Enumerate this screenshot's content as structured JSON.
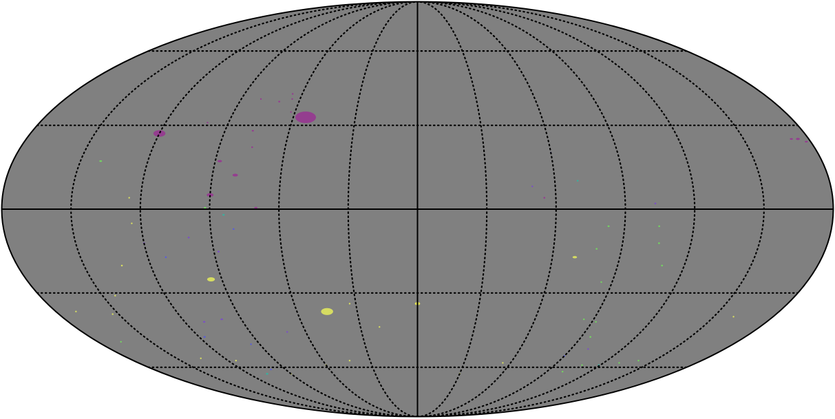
{
  "map": {
    "projection": "mollweide",
    "background_color": "#ffffff",
    "sky_fill_color": "#808080",
    "outline_color": "#000000",
    "graticule": {
      "style": "dotted",
      "color": "#000000",
      "meridian_step_deg": 30,
      "parallel_step_deg": 30
    },
    "axes_lines": "solid",
    "palette": {
      "purple": "#943e8f",
      "violet": "#7a4fc4",
      "blue": "#5a5ed6",
      "teal": "#38b1a0",
      "green": "#74d561",
      "yellow": "#d6dc62",
      "bright_yellow": "#e4e556"
    },
    "patches": [
      {
        "lon": 54,
        "lat": 33,
        "r": 5.0,
        "color": "purple"
      },
      {
        "lon": 120,
        "lat": 27,
        "r": 2.8,
        "color": "purple"
      },
      {
        "lon": 90,
        "lat": 5,
        "r": 1.5,
        "color": "purple"
      },
      {
        "lon": 80,
        "lat": 12,
        "r": 1.2,
        "color": "purple"
      },
      {
        "lon": 88,
        "lat": 17,
        "r": 1.0,
        "color": "purple"
      },
      {
        "lon": 70,
        "lat": 0.5,
        "r": 0.7,
        "color": "purple"
      },
      {
        "lon": 77,
        "lat": 28,
        "r": 0.5,
        "color": "purple"
      },
      {
        "lon": 70,
        "lat": 39,
        "r": 0.5,
        "color": "purple"
      },
      {
        "lon": 65,
        "lat": 42,
        "r": 0.45,
        "color": "purple"
      },
      {
        "lon": 80,
        "lat": 40,
        "r": 0.4,
        "color": "purple"
      },
      {
        "lon": 62,
        "lat": 35,
        "r": 0.4,
        "color": "purple"
      },
      {
        "lon": 100,
        "lat": 31,
        "r": 0.4,
        "color": "purple"
      },
      {
        "lon": 75,
        "lat": 22,
        "r": 0.4,
        "color": "purple"
      },
      {
        "lon": -55,
        "lat": 4,
        "r": 0.4,
        "color": "purple"
      },
      {
        "lon": 64,
        "lat": 40,
        "r": 0.35,
        "color": "purple"
      },
      {
        "lon": -175,
        "lat": 25,
        "r": 0.9,
        "color": "purple"
      },
      {
        "lon": -178,
        "lat": 24,
        "r": 0.7,
        "color": "purple"
      },
      {
        "lon": -172,
        "lat": 25,
        "r": 0.7,
        "color": "purple"
      },
      {
        "lon": 45,
        "lat": -37,
        "r": 3.0,
        "color": "yellow"
      },
      {
        "lon": 95,
        "lat": -25,
        "r": 1.8,
        "color": "yellow"
      },
      {
        "lon": 0,
        "lat": -34,
        "r": 1.3,
        "color": "bright_yellow"
      },
      {
        "lon": -70,
        "lat": -17,
        "r": 1.0,
        "color": "yellow"
      },
      {
        "lon": 141,
        "lat": 17,
        "r": 0.6,
        "color": "green"
      },
      {
        "lon": 92,
        "lat": 0.5,
        "r": 0.5,
        "color": "green"
      },
      {
        "lon": 84,
        "lat": -2,
        "r": 0.5,
        "color": "teal"
      },
      {
        "lon": -83,
        "lat": -6,
        "r": 0.45,
        "color": "green"
      },
      {
        "lon": -79,
        "lat": -14,
        "r": 0.4,
        "color": "green"
      },
      {
        "lon": -95,
        "lat": -47,
        "r": 0.5,
        "color": "green"
      },
      {
        "lon": -92,
        "lat": -41,
        "r": 0.45,
        "color": "green"
      },
      {
        "lon": -85,
        "lat": -40,
        "r": 0.4,
        "color": "green"
      },
      {
        "lon": -101,
        "lat": -62,
        "r": 0.6,
        "color": "green"
      },
      {
        "lon": -108,
        "lat": -59,
        "r": 0.5,
        "color": "green"
      },
      {
        "lon": -119,
        "lat": -59,
        "r": 0.45,
        "color": "teal"
      },
      {
        "lon": -130,
        "lat": -58,
        "r": 0.45,
        "color": "green"
      },
      {
        "lon": -140,
        "lat": -57,
        "r": 0.4,
        "color": "green"
      },
      {
        "lon": -160,
        "lat": -39,
        "r": 0.4,
        "color": "yellow"
      },
      {
        "lon": -110,
        "lat": -20,
        "r": 0.4,
        "color": "green"
      },
      {
        "lon": -106,
        "lat": -12,
        "r": 0.4,
        "color": "green"
      },
      {
        "lon": -105,
        "lat": -6,
        "r": 0.4,
        "color": "green"
      },
      {
        "lon": -103,
        "lat": 2,
        "r": 0.4,
        "color": "violet"
      },
      {
        "lon": 133,
        "lat": -20,
        "r": 0.4,
        "color": "yellow"
      },
      {
        "lon": 144,
        "lat": -31,
        "r": 0.4,
        "color": "yellow"
      },
      {
        "lon": 153,
        "lat": -38,
        "r": 0.4,
        "color": "yellow"
      },
      {
        "lon": 167,
        "lat": -49,
        "r": 0.45,
        "color": "green"
      },
      {
        "lon": 170,
        "lat": -37,
        "r": 0.35,
        "color": "yellow"
      },
      {
        "lon": 107,
        "lat": -63,
        "r": 0.8,
        "color": "teal"
      },
      {
        "lon": 100,
        "lat": -61,
        "r": 0.6,
        "color": "blue"
      },
      {
        "lon": 115,
        "lat": -57,
        "r": 0.5,
        "color": "yellow"
      },
      {
        "lon": 135,
        "lat": -56,
        "r": 0.5,
        "color": "yellow"
      },
      {
        "lon": 90,
        "lat": -63,
        "r": 0.5,
        "color": "yellow"
      },
      {
        "lon": 100,
        "lat": -40,
        "r": 0.6,
        "color": "violet"
      },
      {
        "lon": 110,
        "lat": -41,
        "r": 0.6,
        "color": "violet"
      },
      {
        "lon": 117,
        "lat": -47,
        "r": 0.6,
        "color": "blue"
      },
      {
        "lon": 88,
        "lat": -15,
        "r": 0.45,
        "color": "violet"
      },
      {
        "lon": 100,
        "lat": -10,
        "r": 0.4,
        "color": "violet"
      },
      {
        "lon": 80,
        "lat": -7,
        "r": 0.4,
        "color": "blue"
      },
      {
        "lon": 120,
        "lat": -12,
        "r": 0.4,
        "color": "violet"
      },
      {
        "lon": 112,
        "lat": -17,
        "r": 0.4,
        "color": "blue"
      },
      {
        "lon": 90,
        "lat": -30,
        "r": 0.4,
        "color": "violet"
      },
      {
        "lon": 70,
        "lat": -45,
        "r": 0.35,
        "color": "violet"
      },
      {
        "lon": 95,
        "lat": -50,
        "r": 0.35,
        "color": "blue"
      },
      {
        "lon": 60,
        "lat": -59,
        "r": 0.35,
        "color": "yellow"
      },
      {
        "lon": 43,
        "lat": -57,
        "r": 0.3,
        "color": "yellow"
      },
      {
        "lon": 20,
        "lat": -43,
        "r": 0.3,
        "color": "yellow"
      },
      {
        "lon": 33,
        "lat": -34,
        "r": 0.3,
        "color": "yellow"
      },
      {
        "lon": 125,
        "lat": 4,
        "r": 0.35,
        "color": "yellow"
      },
      {
        "lon": 124,
        "lat": -5,
        "r": 0.35,
        "color": "yellow"
      },
      {
        "lon": -85,
        "lat": -26,
        "r": 0.35,
        "color": "green"
      },
      {
        "lon": -100,
        "lat": -52,
        "r": 0.3,
        "color": "violet"
      },
      {
        "lon": -90,
        "lat": -55,
        "r": 0.3,
        "color": "blue"
      },
      {
        "lon": -55,
        "lat": -58,
        "r": 0.3,
        "color": "yellow"
      },
      {
        "lon": -30,
        "lat": -63,
        "r": 0.3,
        "color": "yellow"
      },
      {
        "lon": -50,
        "lat": 8,
        "r": 0.3,
        "color": "violet"
      },
      {
        "lon": -70,
        "lat": 10,
        "r": 0.3,
        "color": "teal"
      },
      {
        "lon": -60,
        "lat": 20,
        "r": 0.3,
        "color": "blue"
      }
    ]
  }
}
